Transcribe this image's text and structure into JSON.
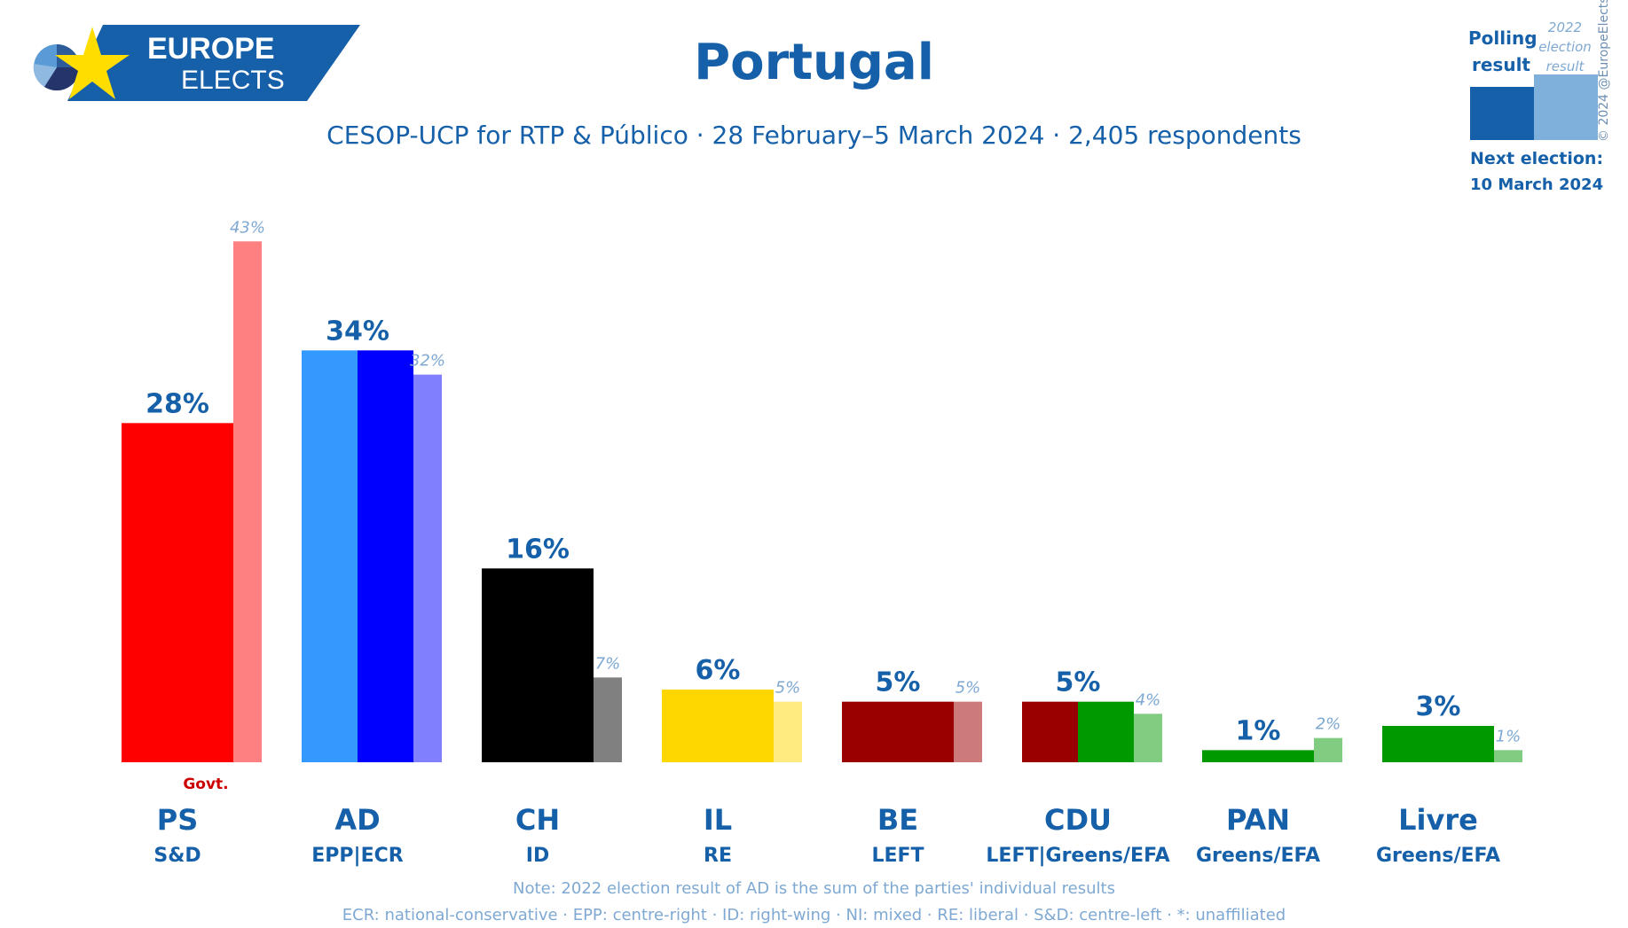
{
  "header": {
    "logo_line1": "EUROPE",
    "logo_line2": "ELECTS",
    "title": "Portugal",
    "subtitle": "CESOP-UCP for RTP & Público · 28 February–5 March 2024 · 2,405 respondents"
  },
  "legend": {
    "polling_line1": "Polling",
    "polling_line2": "result",
    "prev_line1": "2022",
    "prev_line2": "election",
    "prev_line3": "result",
    "next_label": "Next election:",
    "next_date": "10 March 2024",
    "polling_color": "#1560a8",
    "prev_color": "#7fb0dc"
  },
  "copyright": "© 2024 @EuropeElects",
  "footer": {
    "note": "Note: 2022 election result of AD is the sum of the parties' individual results",
    "glossary": "ECR: national-conservative · EPP: centre-right · ID: right-wing · NI: mixed · RE: liberal · S&D: centre-left · *: unaffiliated"
  },
  "chart_data": {
    "type": "bar",
    "categories": [
      "PS",
      "AD",
      "CH",
      "IL",
      "BE",
      "CDU",
      "PAN",
      "Livre"
    ],
    "groups": [
      "S&D",
      "EPP|ECR",
      "ID",
      "RE",
      "LEFT",
      "LEFT|Greens/EFA",
      "Greens/EFA",
      "Greens/EFA"
    ],
    "series": [
      {
        "values": [
          28,
          34,
          16,
          6,
          5,
          5,
          1,
          3
        ],
        "labels": [
          "28%",
          "34%",
          "16%",
          "6%",
          "5%",
          "5%",
          "1%",
          "3%"
        ]
      },
      {
        "values": [
          43,
          32,
          7,
          5,
          5,
          4,
          2,
          1
        ],
        "labels": [
          "43%",
          "32%",
          "7%",
          "5%",
          "5%",
          "4%",
          "2%",
          "1%"
        ]
      }
    ],
    "poll_colors": [
      [
        "#ff0000"
      ],
      [
        "#3399ff",
        "#0000ff"
      ],
      [
        "#000000"
      ],
      [
        "#ffd700"
      ],
      [
        "#990000"
      ],
      [
        "#990000",
        "#009900"
      ],
      [
        "#009900"
      ],
      [
        "#009900"
      ]
    ],
    "prev_colors": [
      "#ff8080",
      "#8080ff",
      "#808080",
      "#ffeb80",
      "#cc7a7a",
      "#80cc80",
      "#80cc80",
      "#80cc80"
    ],
    "government_label": "Govt.",
    "government_party": "PS",
    "ylim": [
      0,
      45
    ],
    "grid": false,
    "legend_position": "top-right"
  }
}
